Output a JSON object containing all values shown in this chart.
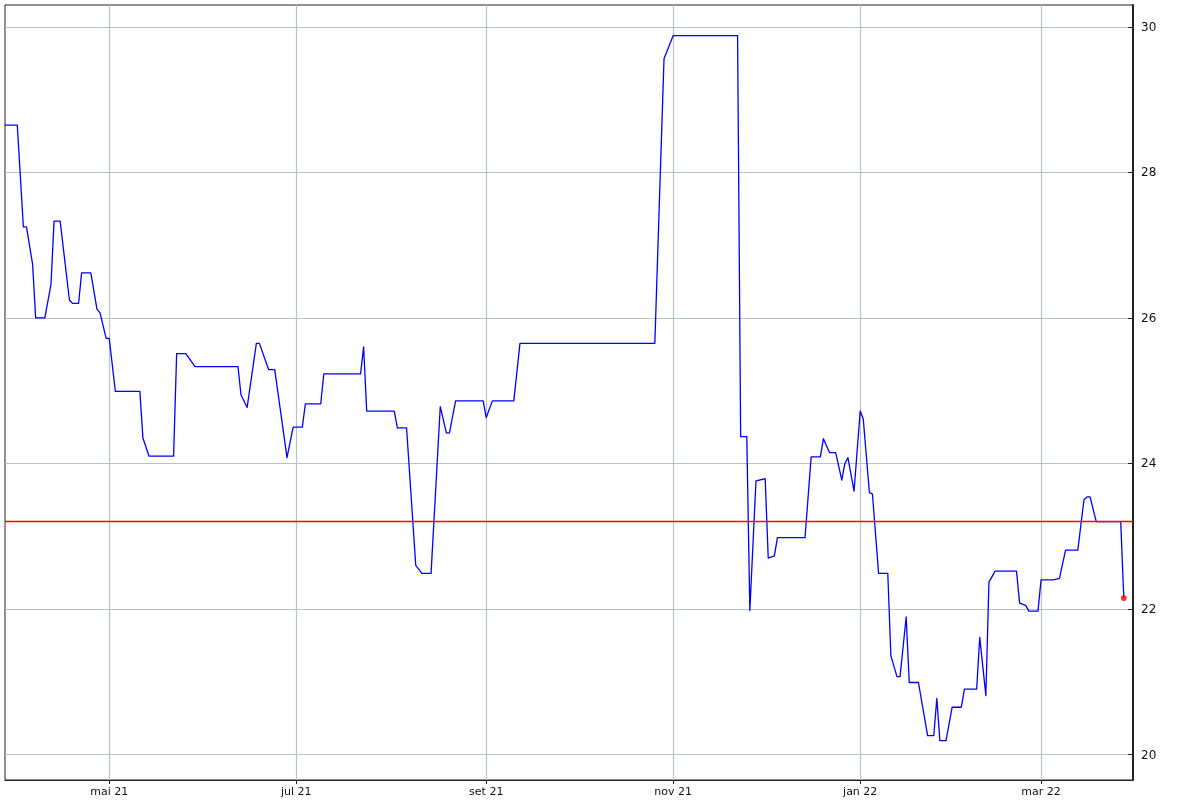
{
  "chart_data": {
    "type": "line",
    "x": [
      "2021-03-28",
      "2021-04-01",
      "2021-04-03",
      "2021-04-04",
      "2021-04-06",
      "2021-04-07",
      "2021-04-10",
      "2021-04-12",
      "2021-04-13",
      "2021-04-15",
      "2021-04-18",
      "2021-04-19",
      "2021-04-21",
      "2021-04-22",
      "2021-04-25",
      "2021-04-27",
      "2021-04-28",
      "2021-04-30",
      "2021-05-01",
      "2021-05-03",
      "2021-05-11",
      "2021-05-12",
      "2021-05-14",
      "2021-05-22",
      "2021-05-23",
      "2021-05-26",
      "2021-05-29",
      "2021-06-12",
      "2021-06-13",
      "2021-06-15",
      "2021-06-18",
      "2021-06-19",
      "2021-06-22",
      "2021-06-24",
      "2021-06-28",
      "2021-06-30",
      "2021-07-03",
      "2021-07-04",
      "2021-07-09",
      "2021-07-10",
      "2021-07-22",
      "2021-07-23",
      "2021-07-24",
      "2021-08-02",
      "2021-08-03",
      "2021-08-06",
      "2021-08-09",
      "2021-08-11",
      "2021-08-14",
      "2021-08-17",
      "2021-08-19",
      "2021-08-20",
      "2021-08-22",
      "2021-08-31",
      "2021-09-01",
      "2021-09-03",
      "2021-09-10",
      "2021-09-12",
      "2021-10-26",
      "2021-10-29",
      "2021-11-01",
      "2021-11-22",
      "2021-11-23",
      "2021-11-25",
      "2021-11-26",
      "2021-11-28",
      "2021-12-01",
      "2021-12-02",
      "2021-12-04",
      "2021-12-05",
      "2021-12-14",
      "2021-12-16",
      "2021-12-19",
      "2021-12-20",
      "2021-12-22",
      "2021-12-24",
      "2021-12-26",
      "2021-12-27",
      "2021-12-28",
      "2021-12-30",
      "2022-01-01",
      "2022-01-02",
      "2022-01-04",
      "2022-01-05",
      "2022-01-07",
      "2022-01-10",
      "2022-01-11",
      "2022-01-13",
      "2022-01-14",
      "2022-01-16",
      "2022-01-17",
      "2022-01-20",
      "2022-01-23",
      "2022-01-25",
      "2022-01-26",
      "2022-01-27",
      "2022-01-29",
      "2022-01-31",
      "2022-02-03",
      "2022-02-04",
      "2022-02-08",
      "2022-02-09",
      "2022-02-11",
      "2022-02-12",
      "2022-02-14",
      "2022-02-21",
      "2022-02-22",
      "2022-02-24",
      "2022-02-25",
      "2022-02-28",
      "2022-03-01",
      "2022-03-05",
      "2022-03-07",
      "2022-03-09",
      "2022-03-13",
      "2022-03-15",
      "2022-03-16",
      "2022-03-17",
      "2022-03-19",
      "2022-03-27",
      "2022-03-28"
    ],
    "series": [
      {
        "color": "#0000ff",
        "values": [
          28.65,
          28.65,
          27.25,
          27.25,
          26.74,
          26.0,
          26.0,
          26.46,
          27.33,
          27.33,
          26.25,
          26.2,
          26.2,
          26.62,
          26.62,
          26.12,
          26.07,
          25.72,
          25.72,
          24.99,
          24.99,
          24.35,
          24.1,
          24.1,
          25.51,
          25.51,
          25.33,
          25.33,
          24.94,
          24.77,
          25.65,
          25.65,
          25.29,
          25.29,
          24.08,
          24.5,
          24.5,
          24.82,
          24.82,
          25.23,
          25.23,
          25.6,
          24.72,
          24.72,
          24.49,
          24.49,
          22.6,
          22.49,
          22.49,
          24.78,
          24.42,
          24.42,
          24.86,
          24.86,
          24.63,
          24.86,
          24.86,
          25.65,
          25.65,
          29.56,
          29.88,
          29.88,
          24.37,
          24.37,
          21.98,
          23.76,
          23.79,
          22.7,
          22.73,
          22.98,
          22.98,
          24.09,
          24.09,
          24.34,
          24.15,
          24.15,
          23.77,
          24.0,
          24.08,
          23.62,
          24.72,
          24.61,
          23.6,
          23.58,
          22.49,
          22.49,
          21.36,
          21.07,
          21.07,
          21.89,
          20.99,
          20.99,
          20.26,
          20.26,
          20.77,
          20.19,
          20.19,
          20.65,
          20.65,
          20.9,
          20.9,
          21.61,
          20.81,
          22.37,
          22.52,
          22.52,
          22.08,
          22.05,
          21.97,
          21.97,
          22.4,
          22.4,
          22.42,
          22.81,
          22.81,
          23.5,
          23.54,
          23.54,
          23.2,
          23.2,
          22.15
        ]
      },
      {
        "type": "scatter",
        "color": "#ff0000",
        "x": [
          "2022-03-28"
        ],
        "values": [
          22.15
        ]
      }
    ],
    "xlim": [
      "2021-03-28",
      "2022-03-31"
    ],
    "xticks": [
      {
        "value": "2021-05-01",
        "label": "mai 21"
      },
      {
        "value": "2021-07-01",
        "label": "jul 21"
      },
      {
        "value": "2021-09-01",
        "label": "set 21"
      },
      {
        "value": "2021-11-01",
        "label": "nov 21"
      },
      {
        "value": "2022-01-01",
        "label": "jan 22"
      },
      {
        "value": "2022-03-01",
        "label": "mar 22"
      }
    ],
    "ylim": [
      19.65,
      30.3
    ],
    "yticks": [
      20,
      22,
      24,
      26,
      28,
      30
    ],
    "ref_lines": [
      {
        "axis": "y",
        "value": 23.2,
        "color": "#ff0000"
      }
    ],
    "grid": true,
    "marker": "none"
  }
}
